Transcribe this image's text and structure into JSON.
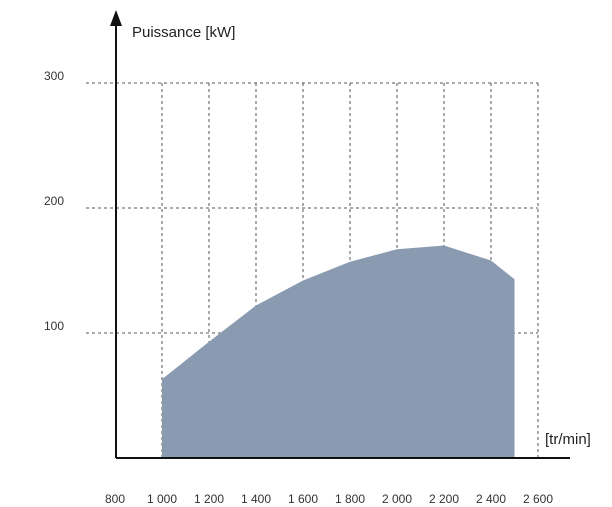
{
  "chart_data": {
    "type": "area",
    "ylabel": "Puissance [kW]",
    "xlabel": "[tr/min]",
    "x_tick_labels": [
      "800",
      "1 000",
      "1 200",
      "1 400",
      "1 600",
      "1 800",
      "2 000",
      "2 200",
      "2 400",
      "2 600"
    ],
    "x_ticks": [
      800,
      1000,
      1200,
      1400,
      1600,
      1800,
      2000,
      2200,
      2400,
      2600
    ],
    "y_tick_labels": [
      "100",
      "200",
      "300"
    ],
    "y_ticks": [
      100,
      200,
      300
    ],
    "xlim": [
      700,
      2700
    ],
    "ylim": [
      0,
      330
    ],
    "grid": true,
    "fill_color": "#8a9bb1",
    "series": [
      {
        "x": [
          1000,
          1200,
          1400,
          1600,
          1800,
          2000,
          2200,
          2400,
          2500
        ],
        "values": [
          63,
          93,
          122,
          142,
          157,
          167,
          170,
          158,
          143
        ]
      }
    ]
  }
}
